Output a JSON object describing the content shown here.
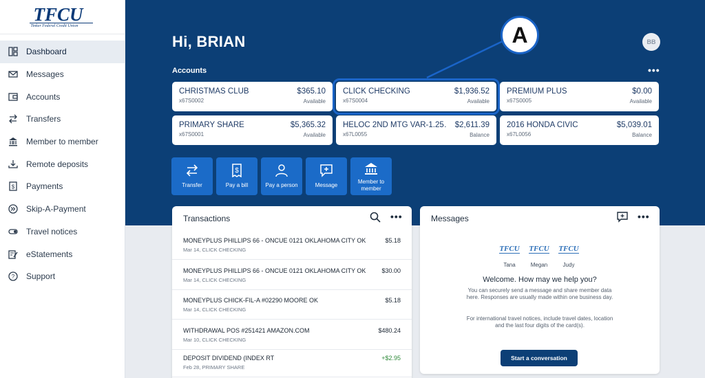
{
  "brand": {
    "logo_text": "TFCU",
    "logo_sub": "Tinker Federal Credit Union"
  },
  "sidebar": {
    "items": [
      {
        "label": "Dashboard",
        "icon": "dashboard-icon"
      },
      {
        "label": "Messages",
        "icon": "envelope-icon"
      },
      {
        "label": "Accounts",
        "icon": "wallet-icon"
      },
      {
        "label": "Transfers",
        "icon": "transfer-arrows-icon"
      },
      {
        "label": "Member to member",
        "icon": "bank-icon"
      },
      {
        "label": "Remote deposits",
        "icon": "download-tray-icon"
      },
      {
        "label": "Payments",
        "icon": "dollar-document-icon"
      },
      {
        "label": "Skip-A-Payment",
        "icon": "skip-forward-icon"
      },
      {
        "label": "Travel notices",
        "icon": "toggle-icon"
      },
      {
        "label": "eStatements",
        "icon": "document-edit-icon"
      },
      {
        "label": "Support",
        "icon": "question-circle-icon"
      }
    ]
  },
  "header": {
    "greeting": "Hi, BRIAN",
    "avatar_initials": "BB"
  },
  "accounts": {
    "label": "Accounts",
    "more": "•••",
    "list": [
      {
        "name": "CHRISTMAS CLUB",
        "number": "x67S0002",
        "balance": "$365.10",
        "balance_type": "Available"
      },
      {
        "name": "CLICK CHECKING",
        "number": "x67S0004",
        "balance": "$1,936.52",
        "balance_type": "Available"
      },
      {
        "name": "PREMIUM PLUS",
        "number": "x67S0005",
        "balance": "$0.00",
        "balance_type": "Available"
      },
      {
        "name": "PRIMARY SHARE",
        "number": "x67S0001",
        "balance": "$5,365.32",
        "balance_type": "Available"
      },
      {
        "name": "HELOC 2ND MTG VAR-1.25…",
        "number": "x67L0055",
        "balance": "$2,611.39",
        "balance_type": "Balance"
      },
      {
        "name": "2016 HONDA CIVIC",
        "number": "x67L0056",
        "balance": "$5,039.01",
        "balance_type": "Balance"
      }
    ]
  },
  "callout": {
    "label": "A"
  },
  "quick_actions": [
    {
      "label": "Transfer",
      "icon": "transfer-arrows-icon"
    },
    {
      "label": "Pay a bill",
      "icon": "bill-icon"
    },
    {
      "label": "Pay a person",
      "icon": "person-icon"
    },
    {
      "label": "Message",
      "icon": "message-plus-icon"
    },
    {
      "label": "Member to member",
      "icon": "bank-icon"
    }
  ],
  "transactions": {
    "title": "Transactions",
    "more": "•••",
    "items": [
      {
        "desc": "MONEYPLUS PHILLIPS 66 - ONCUE 0121 OKLAHOMA CITY OK",
        "meta": "Mar 14, CLICK CHECKING",
        "amount": "$5.18"
      },
      {
        "desc": "MONEYPLUS PHILLIPS 66 - ONCUE 0121 OKLAHOMA CITY OK",
        "meta": "Mar 14, CLICK CHECKING",
        "amount": "$30.00"
      },
      {
        "desc": "MONEYPLUS CHICK-FIL-A #02290 MOORE OK",
        "meta": "Mar 14, CLICK CHECKING",
        "amount": "$5.18"
      },
      {
        "desc": "WITHDRAWAL POS #251421 AMAZON.COM",
        "meta": "Mar 10, CLICK CHECKING",
        "amount": "$480.24"
      },
      {
        "desc": "DEPOSIT DIVIDEND (INDEX RT",
        "meta": "Feb 28, PRIMARY SHARE",
        "amount": "+$2.95"
      }
    ]
  },
  "messages": {
    "title": "Messages",
    "more": "•••",
    "staff": [
      {
        "logo": "TFCU",
        "name": "Tana"
      },
      {
        "logo": "TFCU",
        "name": "Megan"
      },
      {
        "logo": "TFCU",
        "name": "Judy"
      }
    ],
    "welcome": "Welcome. How may we help you?",
    "body1": "You can securely send a message and share member data here. Responses are usually made within one business day.",
    "body2": "For international travel notices, include travel dates, location and the last four digits of the card(s).",
    "start_button": "Start a conversation"
  },
  "colors": {
    "primary": "#0c3f76",
    "accent": "#1b6bc8",
    "highlight": "#1a64c8",
    "positive": "#2f8a3a"
  }
}
